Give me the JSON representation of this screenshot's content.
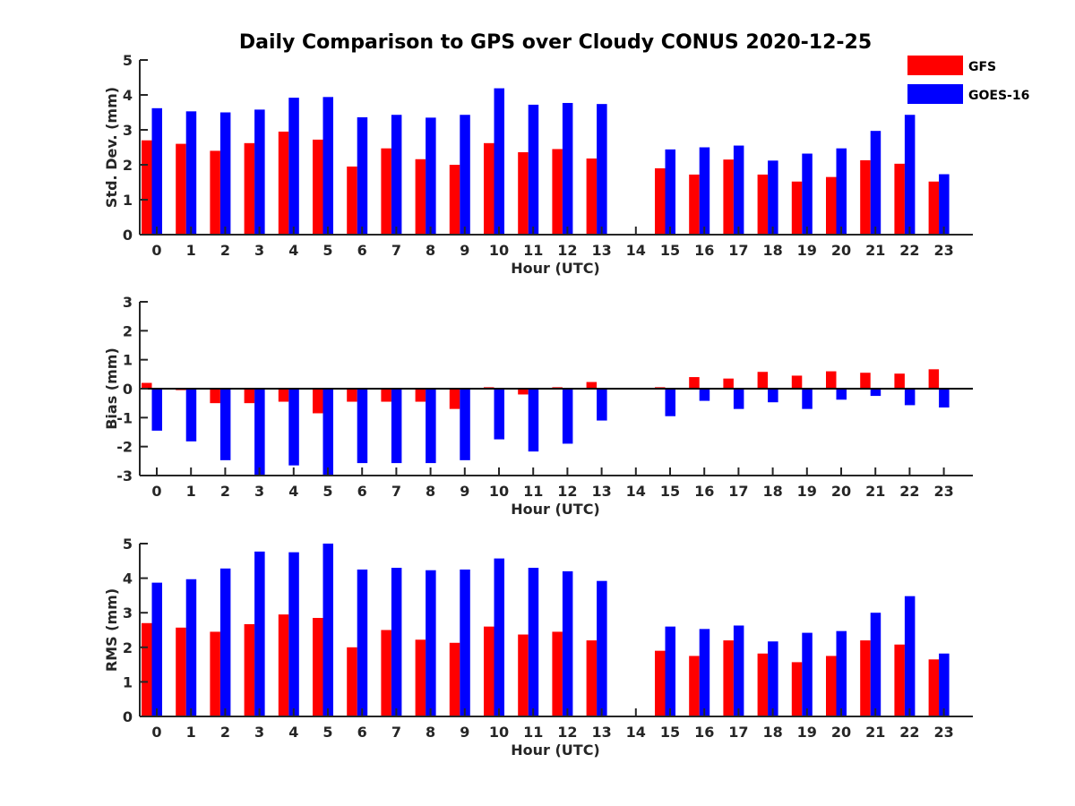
{
  "title": "Daily Comparison to GPS over Cloudy CONUS 2020-12-25",
  "colors": {
    "GFS": "#ff0000",
    "GOES-16": "#0000ff"
  },
  "legend": {
    "placement": "top-right",
    "entries": [
      "GFS",
      "GOES-16"
    ]
  },
  "chart_data": [
    {
      "type": "bar",
      "xlabel": "Hour (UTC)",
      "ylabel": "Std. Dev. (mm)",
      "ylim": [
        0,
        5
      ],
      "yticks": [
        0,
        1,
        2,
        3,
        4,
        5
      ],
      "grid": false,
      "categories": [
        "0",
        "1",
        "2",
        "3",
        "4",
        "5",
        "6",
        "7",
        "8",
        "9",
        "10",
        "11",
        "12",
        "13",
        "14",
        "15",
        "16",
        "17",
        "18",
        "19",
        "20",
        "21",
        "22",
        "23"
      ],
      "series": [
        {
          "name": "GFS",
          "values": [
            2.7,
            2.6,
            2.4,
            2.62,
            2.95,
            2.72,
            1.95,
            2.47,
            2.16,
            2.0,
            2.62,
            2.36,
            2.45,
            2.18,
            null,
            1.9,
            1.72,
            2.15,
            1.72,
            1.52,
            1.65,
            2.13,
            2.03,
            1.52
          ]
        },
        {
          "name": "GOES-16",
          "values": [
            3.62,
            3.53,
            3.5,
            3.58,
            3.92,
            3.94,
            3.36,
            3.43,
            3.35,
            3.43,
            4.19,
            3.72,
            3.77,
            3.74,
            null,
            2.44,
            2.5,
            2.55,
            2.12,
            2.32,
            2.47,
            2.97,
            3.43,
            1.73
          ]
        }
      ]
    },
    {
      "type": "bar",
      "xlabel": "Hour (UTC)",
      "ylabel": "Bias (mm)",
      "ylim": [
        -3,
        3
      ],
      "yticks": [
        -3,
        -2,
        -1,
        0,
        1,
        2,
        3
      ],
      "grid": false,
      "categories": [
        "0",
        "1",
        "2",
        "3",
        "4",
        "5",
        "6",
        "7",
        "8",
        "9",
        "10",
        "11",
        "12",
        "13",
        "14",
        "15",
        "16",
        "17",
        "18",
        "19",
        "20",
        "21",
        "22",
        "23"
      ],
      "series": [
        {
          "name": "GFS",
          "values": [
            0.2,
            -0.05,
            -0.5,
            -0.5,
            -0.45,
            -0.85,
            -0.45,
            -0.45,
            -0.45,
            -0.7,
            0.05,
            -0.2,
            0.05,
            0.23,
            null,
            0.05,
            0.4,
            0.35,
            0.58,
            0.45,
            0.6,
            0.55,
            0.52,
            0.67
          ]
        },
        {
          "name": "GOES-16",
          "values": [
            -1.45,
            -1.82,
            -2.47,
            -3.0,
            -2.65,
            -3.0,
            -2.57,
            -2.57,
            -2.57,
            -2.47,
            -1.75,
            -2.17,
            -1.9,
            -1.1,
            null,
            -0.95,
            -0.42,
            -0.7,
            -0.47,
            -0.7,
            -0.38,
            -0.25,
            -0.57,
            -0.65
          ]
        }
      ]
    },
    {
      "type": "bar",
      "xlabel": "Hour (UTC)",
      "ylabel": "RMS (mm)",
      "ylim": [
        0,
        5
      ],
      "yticks": [
        0,
        1,
        2,
        3,
        4,
        5
      ],
      "grid": false,
      "categories": [
        "0",
        "1",
        "2",
        "3",
        "4",
        "5",
        "6",
        "7",
        "8",
        "9",
        "10",
        "11",
        "12",
        "13",
        "14",
        "15",
        "16",
        "17",
        "18",
        "19",
        "20",
        "21",
        "22",
        "23"
      ],
      "series": [
        {
          "name": "GFS",
          "values": [
            2.7,
            2.57,
            2.45,
            2.67,
            2.95,
            2.85,
            2.0,
            2.5,
            2.22,
            2.13,
            2.6,
            2.37,
            2.45,
            2.2,
            null,
            1.9,
            1.75,
            2.2,
            1.82,
            1.57,
            1.75,
            2.2,
            2.08,
            1.65
          ]
        },
        {
          "name": "GOES-16",
          "values": [
            3.87,
            3.97,
            4.28,
            4.77,
            4.75,
            5.0,
            4.25,
            4.3,
            4.23,
            4.25,
            4.57,
            4.3,
            4.2,
            3.92,
            null,
            2.6,
            2.53,
            2.63,
            2.17,
            2.42,
            2.47,
            3.0,
            3.48,
            1.82
          ]
        }
      ]
    }
  ]
}
